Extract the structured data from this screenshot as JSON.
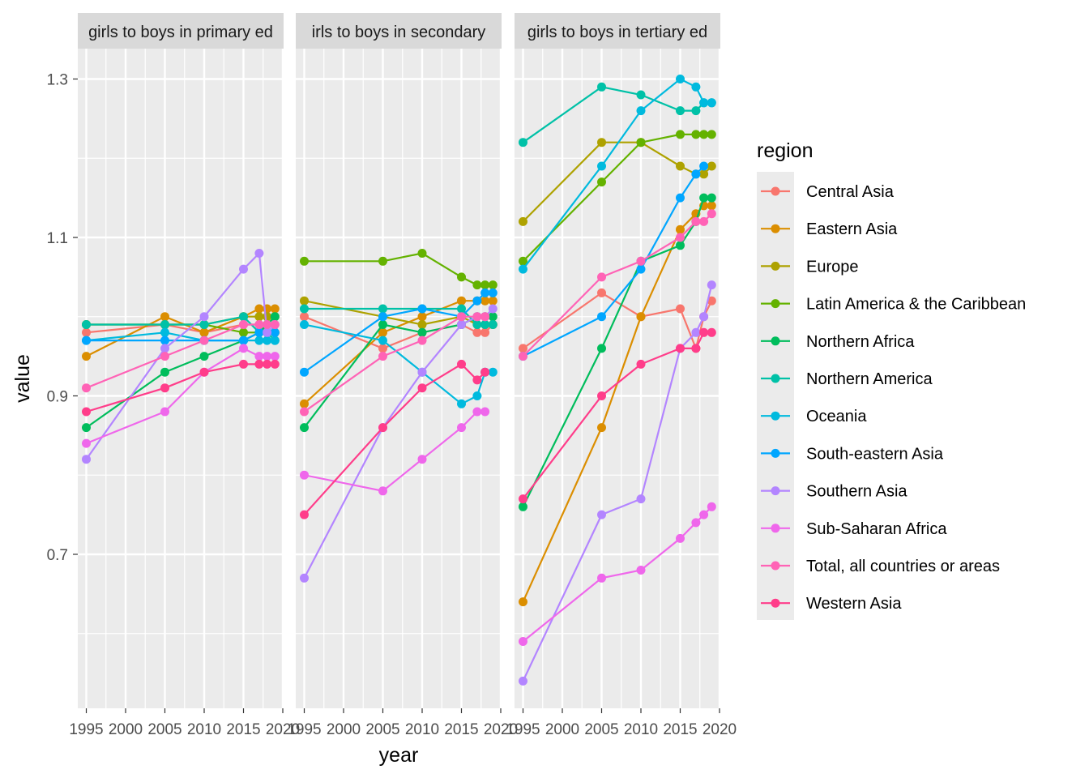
{
  "chart_data": {
    "type": "line",
    "xlabel": "year",
    "ylabel": "value",
    "ylim": [
      0.5,
      1.34
    ],
    "xlim": [
      1994,
      2020
    ],
    "y_ticks": [
      "0.7",
      "0.9",
      "1.1",
      "1.3"
    ],
    "x_ticks": [
      "1995",
      "2000",
      "2005",
      "2010",
      "2015",
      "2020"
    ],
    "legend": {
      "title": "region",
      "placement": "right",
      "entries": [
        {
          "name": "Central Asia",
          "color": "#F8766D"
        },
        {
          "name": "Eastern Asia",
          "color": "#DB8E00"
        },
        {
          "name": "Europe",
          "color": "#AEA200"
        },
        {
          "name": "Latin America & the Caribbean",
          "color": "#64B200"
        },
        {
          "name": "Northern Africa",
          "color": "#00BD5C"
        },
        {
          "name": "Northern America",
          "color": "#00C1A7"
        },
        {
          "name": "Oceania",
          "color": "#00BADE"
        },
        {
          "name": "South-eastern Asia",
          "color": "#00A6FF"
        },
        {
          "name": "Southern Asia",
          "color": "#B385FF"
        },
        {
          "name": "Sub-Saharan Africa",
          "color": "#EF67EB"
        },
        {
          "name": "Total, all countries or areas",
          "color": "#FF63B6"
        },
        {
          "name": "Western Asia",
          "color": "#F8766D"
        }
      ]
    },
    "panels": [
      {
        "strip": "girls to boys in primary ed",
        "series": [
          {
            "name": "Central Asia",
            "x": [
              1995,
              2005,
              2010,
              2015,
              2017,
              2018,
              2019
            ],
            "y": [
              0.98,
              0.99,
              0.98,
              0.99,
              0.99,
              0.98,
              0.98
            ]
          },
          {
            "name": "Eastern Asia",
            "x": [
              1995,
              2005,
              2010,
              2015,
              2017,
              2018,
              2019
            ],
            "y": [
              0.95,
              1.0,
              0.98,
              1.0,
              1.01,
              1.01,
              1.01
            ]
          },
          {
            "name": "Europe",
            "x": [
              1995,
              2005,
              2010,
              2015,
              2017,
              2018,
              2019
            ],
            "y": [
              0.99,
              0.99,
              0.99,
              1.0,
              1.0,
              1.0,
              1.0
            ]
          },
          {
            "name": "Latin America & the Caribbean",
            "x": [
              1995,
              2005,
              2010,
              2015,
              2017,
              2018,
              2019
            ],
            "y": [
              0.99,
              0.99,
              0.99,
              0.98,
              0.98,
              0.98,
              0.98
            ]
          },
          {
            "name": "Northern Africa",
            "x": [
              1995,
              2005,
              2010,
              2015,
              2017,
              2018,
              2019
            ],
            "y": [
              0.86,
              0.93,
              0.95,
              0.97,
              0.98,
              0.99,
              1.0
            ]
          },
          {
            "name": "Northern America",
            "x": [
              1995,
              2005,
              2010,
              2015,
              2017,
              2018,
              2019
            ],
            "y": [
              0.99,
              0.99,
              0.99,
              1.0,
              0.98,
              0.98,
              0.97
            ]
          },
          {
            "name": "Oceania",
            "x": [
              1995,
              2005,
              2010,
              2015,
              2017,
              2018,
              2019
            ],
            "y": [
              0.97,
              0.98,
              0.97,
              0.97,
              0.97,
              0.97,
              0.97
            ]
          },
          {
            "name": "South-eastern Asia",
            "x": [
              1995,
              2005,
              2010,
              2015,
              2017,
              2018,
              2019
            ],
            "y": [
              0.97,
              0.97,
              0.97,
              0.97,
              0.98,
              0.98,
              0.98
            ]
          },
          {
            "name": "Southern Asia",
            "x": [
              1995,
              2005,
              2010,
              2015,
              2017,
              2018,
              2019
            ],
            "y": [
              0.82,
              0.96,
              1.0,
              1.06,
              1.08,
              0.98,
              0.99
            ]
          },
          {
            "name": "Sub-Saharan Africa",
            "x": [
              1995,
              2005,
              2010,
              2015,
              2017,
              2018,
              2019
            ],
            "y": [
              0.84,
              0.88,
              0.93,
              0.96,
              0.95,
              0.95,
              0.95
            ]
          },
          {
            "name": "Total, all countries or areas",
            "x": [
              1995,
              2005,
              2010,
              2015,
              2017,
              2018,
              2019
            ],
            "y": [
              0.91,
              0.95,
              0.97,
              0.99,
              0.99,
              0.99,
              0.99
            ]
          },
          {
            "name": "Western Asia",
            "x": [
              1995,
              2005,
              2010,
              2015,
              2017,
              2018,
              2019
            ],
            "y": [
              0.88,
              0.91,
              0.93,
              0.94,
              0.94,
              0.94,
              0.94
            ]
          }
        ]
      },
      {
        "strip": "irls to boys in secondary",
        "series": [
          {
            "name": "Central Asia",
            "x": [
              1995,
              2005,
              2010,
              2015,
              2017,
              2018,
              2019
            ],
            "y": [
              1.0,
              0.96,
              0.98,
              0.99,
              0.98,
              0.98,
              0.99
            ]
          },
          {
            "name": "Eastern Asia",
            "x": [
              1995,
              2005,
              2010,
              2015,
              2017,
              2018,
              2019
            ],
            "y": [
              0.89,
              0.98,
              1.0,
              1.02,
              1.02,
              1.02,
              1.02
            ]
          },
          {
            "name": "Europe",
            "x": [
              1995,
              2005,
              2010,
              2015,
              2017,
              2018,
              2019
            ],
            "y": [
              1.02,
              1.0,
              0.99,
              1.0,
              0.99,
              0.99,
              0.99
            ]
          },
          {
            "name": "Latin America & the Caribbean",
            "x": [
              1995,
              2005,
              2010,
              2015,
              2017,
              2018,
              2019
            ],
            "y": [
              1.07,
              1.07,
              1.08,
              1.05,
              1.04,
              1.04,
              1.04
            ]
          },
          {
            "name": "Northern Africa",
            "x": [
              1995,
              2005,
              2010,
              2015,
              2017,
              2018,
              2019
            ],
            "y": [
              0.86,
              0.99,
              0.98,
              0.99,
              1.0,
              1.0,
              1.0
            ]
          },
          {
            "name": "Northern America",
            "x": [
              1995,
              2005,
              2010,
              2015,
              2017,
              2018,
              2019
            ],
            "y": [
              1.01,
              1.01,
              1.01,
              1.01,
              0.99,
              0.99,
              0.99
            ]
          },
          {
            "name": "Oceania",
            "x": [
              1995,
              2005,
              2010,
              2015,
              2017,
              2018,
              2019
            ],
            "y": [
              0.99,
              0.97,
              0.93,
              0.89,
              0.9,
              0.93,
              0.93
            ]
          },
          {
            "name": "South-eastern Asia",
            "x": [
              1995,
              2005,
              2010,
              2015,
              2017,
              2018,
              2019
            ],
            "y": [
              0.93,
              1.0,
              1.01,
              1.0,
              1.02,
              1.03,
              1.03
            ]
          },
          {
            "name": "Southern Asia",
            "x": [
              1995,
              2005,
              2010,
              2015,
              2017,
              2018,
              2019
            ],
            "y": [
              0.67,
              0.86,
              0.93,
              0.99,
              1.0,
              1.0,
              1.01
            ]
          },
          {
            "name": "Sub-Saharan Africa",
            "x": [
              1995,
              2005,
              2010,
              2015,
              2017,
              2018
            ],
            "y": [
              0.8,
              0.78,
              0.82,
              0.86,
              0.88,
              0.88
            ]
          },
          {
            "name": "Total, all countries or areas",
            "x": [
              1995,
              2005,
              2010,
              2015,
              2017,
              2018
            ],
            "y": [
              0.88,
              0.95,
              0.97,
              1.0,
              1.0,
              1.0
            ]
          },
          {
            "name": "Western Asia",
            "x": [
              1995,
              2005,
              2010,
              2015,
              2017,
              2018
            ],
            "y": [
              0.75,
              0.86,
              0.91,
              0.94,
              0.92,
              0.93
            ]
          }
        ]
      },
      {
        "strip": "girls to boys in tertiary ed",
        "series": [
          {
            "name": "Central Asia",
            "x": [
              1995,
              2005,
              2010,
              2015,
              2017,
              2018,
              2019
            ],
            "y": [
              0.96,
              1.03,
              1.0,
              1.01,
              0.96,
              1.0,
              1.02
            ]
          },
          {
            "name": "Eastern Asia",
            "x": [
              1995,
              2005,
              2010,
              2015,
              2017,
              2018,
              2019
            ],
            "y": [
              0.64,
              0.86,
              1.0,
              1.11,
              1.13,
              1.14,
              1.14
            ]
          },
          {
            "name": "Europe",
            "x": [
              1995,
              2005,
              2010,
              2015,
              2017,
              2018,
              2019
            ],
            "y": [
              1.12,
              1.22,
              1.22,
              1.19,
              1.18,
              1.18,
              1.19
            ]
          },
          {
            "name": "Latin America & the Caribbean",
            "x": [
              1995,
              2005,
              2010,
              2015,
              2017,
              2018,
              2019
            ],
            "y": [
              1.07,
              1.17,
              1.22,
              1.23,
              1.23,
              1.23,
              1.23
            ]
          },
          {
            "name": "Northern Africa",
            "x": [
              1995,
              2005,
              2010,
              2015,
              2017,
              2018,
              2019
            ],
            "y": [
              0.76,
              0.96,
              1.07,
              1.09,
              1.12,
              1.15,
              1.15
            ]
          },
          {
            "name": "Northern America",
            "x": [
              1995,
              2005,
              2010,
              2015,
              2017,
              2018,
              2019
            ],
            "y": [
              1.22,
              1.29,
              1.28,
              1.26,
              1.26,
              1.27,
              1.27
            ]
          },
          {
            "name": "Oceania",
            "x": [
              1995,
              2005,
              2010,
              2015,
              2017,
              2018,
              2019
            ],
            "y": [
              1.06,
              1.19,
              1.26,
              1.3,
              1.29,
              1.27,
              1.27
            ]
          },
          {
            "name": "South-eastern Asia",
            "x": [
              1995,
              2005,
              2010,
              2015,
              2017,
              2018
            ],
            "y": [
              0.95,
              1.0,
              1.06,
              1.15,
              1.18,
              1.19
            ]
          },
          {
            "name": "Southern Asia",
            "x": [
              1995,
              2005,
              2010,
              2015,
              2017,
              2018,
              2019
            ],
            "y": [
              0.54,
              0.75,
              0.77,
              0.96,
              0.98,
              1.0,
              1.04
            ]
          },
          {
            "name": "Sub-Saharan Africa",
            "x": [
              1995,
              2005,
              2010,
              2015,
              2017,
              2018,
              2019
            ],
            "y": [
              0.59,
              0.67,
              0.68,
              0.72,
              0.74,
              0.75,
              0.76
            ]
          },
          {
            "name": "Total, all countries or areas",
            "x": [
              1995,
              2005,
              2010,
              2015,
              2017,
              2018,
              2019
            ],
            "y": [
              0.95,
              1.05,
              1.07,
              1.1,
              1.12,
              1.12,
              1.13
            ]
          },
          {
            "name": "Western Asia",
            "x": [
              1995,
              2005,
              2010,
              2015,
              2017,
              2018,
              2019
            ],
            "y": [
              0.77,
              0.9,
              0.94,
              0.96,
              0.96,
              0.98,
              0.98
            ]
          }
        ]
      }
    ]
  }
}
